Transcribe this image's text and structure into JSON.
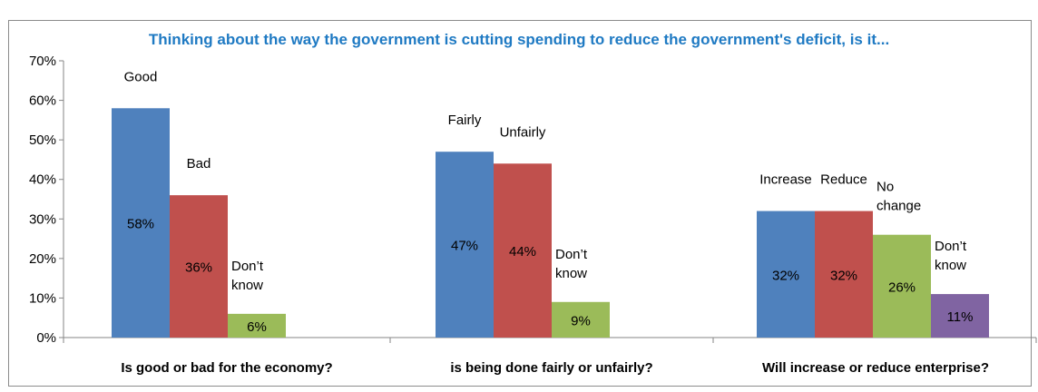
{
  "chart_data": {
    "type": "bar",
    "title": "Thinking about the way the government is cutting spending to reduce the government's deficit, is it...",
    "ylim": [
      0,
      70
    ],
    "yticks": [
      "0%",
      "10%",
      "20%",
      "30%",
      "40%",
      "50%",
      "60%",
      "70%"
    ],
    "grid": false,
    "legend": "none",
    "groups": [
      {
        "category": "Is good or bad for the economy?",
        "bars": [
          {
            "label": "Good",
            "value": 58,
            "value_label": "58%",
            "color": "#4f81bd"
          },
          {
            "label": "Bad",
            "value": 36,
            "value_label": "36%",
            "color": "#c0504d"
          },
          {
            "label": "Don’t know",
            "value": 6,
            "value_label": "6%",
            "color": "#9bbb59"
          }
        ]
      },
      {
        "category": "is being done fairly or unfairly?",
        "bars": [
          {
            "label": "Fairly",
            "value": 47,
            "value_label": "47%",
            "color": "#4f81bd"
          },
          {
            "label": "Unfairly",
            "value": 44,
            "value_label": "44%",
            "color": "#c0504d"
          },
          {
            "label": "Don’t know",
            "value": 9,
            "value_label": "9%",
            "color": "#9bbb59"
          }
        ]
      },
      {
        "category": "Will increase or reduce enterprise?",
        "bars": [
          {
            "label": "Increase",
            "value": 32,
            "value_label": "32%",
            "color": "#4f81bd"
          },
          {
            "label": "Reduce",
            "value": 32,
            "value_label": "32%",
            "color": "#c0504d"
          },
          {
            "label": "No change",
            "value": 26,
            "value_label": "26%",
            "color": "#9bbb59"
          },
          {
            "label": "Don’t know",
            "value": 11,
            "value_label": "11%",
            "color": "#8064a2"
          }
        ]
      }
    ]
  }
}
